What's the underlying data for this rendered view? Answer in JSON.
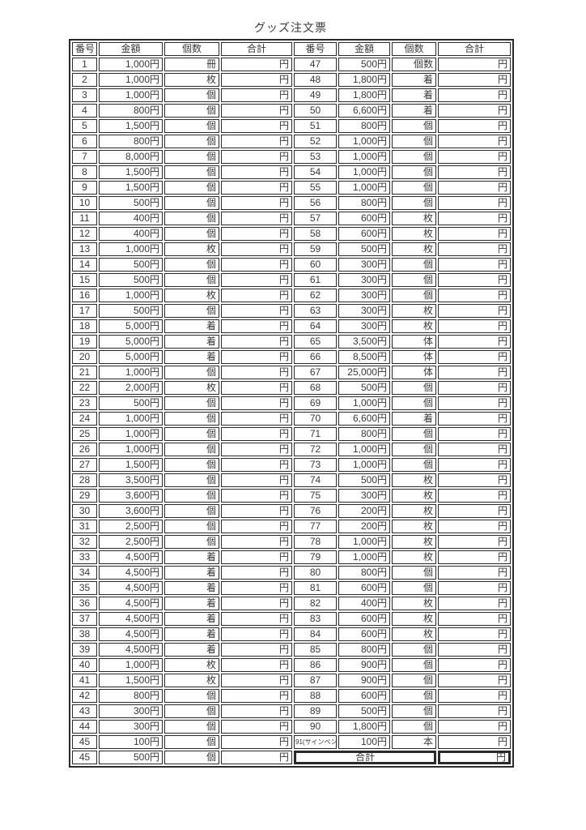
{
  "title": "グッズ注文票",
  "table": {
    "headers": [
      "番号",
      "金額",
      "個数",
      "合計"
    ],
    "yen_suffix": "円",
    "total_label": "合計",
    "left_rows": [
      {
        "no": "1",
        "amount": "1,000円",
        "unit": "冊"
      },
      {
        "no": "2",
        "amount": "1,000円",
        "unit": "枚"
      },
      {
        "no": "3",
        "amount": "1,000円",
        "unit": "個"
      },
      {
        "no": "4",
        "amount": "800円",
        "unit": "個"
      },
      {
        "no": "5",
        "amount": "1,500円",
        "unit": "個"
      },
      {
        "no": "6",
        "amount": "800円",
        "unit": "個"
      },
      {
        "no": "7",
        "amount": "8,000円",
        "unit": "個"
      },
      {
        "no": "8",
        "amount": "1,500円",
        "unit": "個"
      },
      {
        "no": "9",
        "amount": "1,500円",
        "unit": "個"
      },
      {
        "no": "10",
        "amount": "500円",
        "unit": "個"
      },
      {
        "no": "11",
        "amount": "400円",
        "unit": "個"
      },
      {
        "no": "12",
        "amount": "400円",
        "unit": "個"
      },
      {
        "no": "13",
        "amount": "1,000円",
        "unit": "枚"
      },
      {
        "no": "14",
        "amount": "500円",
        "unit": "個"
      },
      {
        "no": "15",
        "amount": "500円",
        "unit": "個"
      },
      {
        "no": "16",
        "amount": "1,000円",
        "unit": "枚"
      },
      {
        "no": "17",
        "amount": "500円",
        "unit": "個"
      },
      {
        "no": "18",
        "amount": "5,000円",
        "unit": "着"
      },
      {
        "no": "19",
        "amount": "5,000円",
        "unit": "着"
      },
      {
        "no": "20",
        "amount": "5,000円",
        "unit": "着"
      },
      {
        "no": "21",
        "amount": "1,000円",
        "unit": "個"
      },
      {
        "no": "22",
        "amount": "2,000円",
        "unit": "枚"
      },
      {
        "no": "23",
        "amount": "500円",
        "unit": "個"
      },
      {
        "no": "24",
        "amount": "1,000円",
        "unit": "個"
      },
      {
        "no": "25",
        "amount": "1,000円",
        "unit": "個"
      },
      {
        "no": "26",
        "amount": "1,000円",
        "unit": "個"
      },
      {
        "no": "27",
        "amount": "1,500円",
        "unit": "個"
      },
      {
        "no": "28",
        "amount": "3,500円",
        "unit": "個"
      },
      {
        "no": "29",
        "amount": "3,600円",
        "unit": "個"
      },
      {
        "no": "30",
        "amount": "3,600円",
        "unit": "個"
      },
      {
        "no": "31",
        "amount": "2,500円",
        "unit": "個"
      },
      {
        "no": "32",
        "amount": "2,500円",
        "unit": "個"
      },
      {
        "no": "33",
        "amount": "4,500円",
        "unit": "着"
      },
      {
        "no": "34",
        "amount": "4,500円",
        "unit": "着"
      },
      {
        "no": "35",
        "amount": "4,500円",
        "unit": "着"
      },
      {
        "no": "36",
        "amount": "4,500円",
        "unit": "着"
      },
      {
        "no": "37",
        "amount": "4,500円",
        "unit": "着"
      },
      {
        "no": "38",
        "amount": "4,500円",
        "unit": "着"
      },
      {
        "no": "39",
        "amount": "4,500円",
        "unit": "着"
      },
      {
        "no": "40",
        "amount": "1,000円",
        "unit": "枚"
      },
      {
        "no": "41",
        "amount": "1,500円",
        "unit": "枚"
      },
      {
        "no": "42",
        "amount": "800円",
        "unit": "個"
      },
      {
        "no": "43",
        "amount": "300円",
        "unit": "個"
      },
      {
        "no": "44",
        "amount": "300円",
        "unit": "個"
      },
      {
        "no": "45",
        "amount": "100円",
        "unit": "個"
      },
      {
        "no": "45",
        "amount": "500円",
        "unit": "個"
      }
    ],
    "right_rows": [
      {
        "no": "47",
        "amount": "500円",
        "unit": "個数"
      },
      {
        "no": "48",
        "amount": "1,800円",
        "unit": "着"
      },
      {
        "no": "49",
        "amount": "1,800円",
        "unit": "着"
      },
      {
        "no": "50",
        "amount": "6,600円",
        "unit": "着"
      },
      {
        "no": "51",
        "amount": "800円",
        "unit": "個"
      },
      {
        "no": "52",
        "amount": "1,000円",
        "unit": "個"
      },
      {
        "no": "53",
        "amount": "1,000円",
        "unit": "個"
      },
      {
        "no": "54",
        "amount": "1,000円",
        "unit": "個"
      },
      {
        "no": "55",
        "amount": "1,000円",
        "unit": "個"
      },
      {
        "no": "56",
        "amount": "800円",
        "unit": "個"
      },
      {
        "no": "57",
        "amount": "600円",
        "unit": "枚"
      },
      {
        "no": "58",
        "amount": "600円",
        "unit": "枚"
      },
      {
        "no": "59",
        "amount": "500円",
        "unit": "枚"
      },
      {
        "no": "60",
        "amount": "300円",
        "unit": "個"
      },
      {
        "no": "61",
        "amount": "300円",
        "unit": "個"
      },
      {
        "no": "62",
        "amount": "300円",
        "unit": "個"
      },
      {
        "no": "63",
        "amount": "300円",
        "unit": "枚"
      },
      {
        "no": "64",
        "amount": "300円",
        "unit": "枚"
      },
      {
        "no": "65",
        "amount": "3,500円",
        "unit": "体"
      },
      {
        "no": "66",
        "amount": "8,500円",
        "unit": "体"
      },
      {
        "no": "67",
        "amount": "25,000円",
        "unit": "体"
      },
      {
        "no": "68",
        "amount": "500円",
        "unit": "個"
      },
      {
        "no": "69",
        "amount": "1,000円",
        "unit": "個"
      },
      {
        "no": "70",
        "amount": "6,600円",
        "unit": "着"
      },
      {
        "no": "71",
        "amount": "800円",
        "unit": "個"
      },
      {
        "no": "72",
        "amount": "1,000円",
        "unit": "個"
      },
      {
        "no": "73",
        "amount": "1,000円",
        "unit": "個"
      },
      {
        "no": "74",
        "amount": "500円",
        "unit": "枚"
      },
      {
        "no": "75",
        "amount": "300円",
        "unit": "枚"
      },
      {
        "no": "76",
        "amount": "200円",
        "unit": "枚"
      },
      {
        "no": "77",
        "amount": "200円",
        "unit": "枚"
      },
      {
        "no": "78",
        "amount": "1,000円",
        "unit": "枚"
      },
      {
        "no": "79",
        "amount": "1,000円",
        "unit": "枚"
      },
      {
        "no": "80",
        "amount": "800円",
        "unit": "個"
      },
      {
        "no": "81",
        "amount": "600円",
        "unit": "個"
      },
      {
        "no": "82",
        "amount": "400円",
        "unit": "枚"
      },
      {
        "no": "83",
        "amount": "600円",
        "unit": "枚"
      },
      {
        "no": "84",
        "amount": "600円",
        "unit": "枚"
      },
      {
        "no": "85",
        "amount": "800円",
        "unit": "個"
      },
      {
        "no": "86",
        "amount": "900円",
        "unit": "個"
      },
      {
        "no": "87",
        "amount": "900円",
        "unit": "個"
      },
      {
        "no": "88",
        "amount": "600円",
        "unit": "個"
      },
      {
        "no": "89",
        "amount": "500円",
        "unit": "個"
      },
      {
        "no": "90",
        "amount": "1,800円",
        "unit": "個"
      },
      {
        "no": "91(サインペン)",
        "amount": "100円",
        "unit": "本",
        "small_no": true
      }
    ]
  }
}
